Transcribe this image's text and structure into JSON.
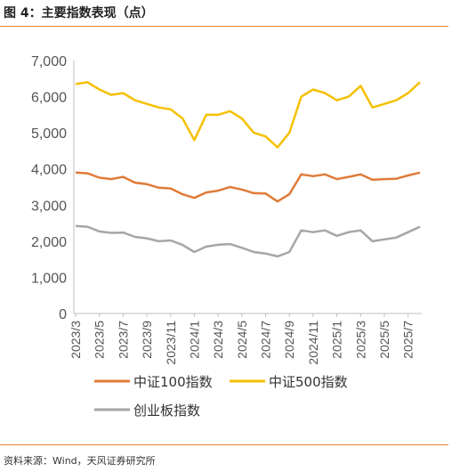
{
  "header": {
    "title": "图 4：主要指数表现（点）"
  },
  "footer": {
    "source": "资料来源：Wind，天风证券研究所"
  },
  "chart_data": {
    "type": "line",
    "title": "图 4：主要指数表现（点）",
    "xlabel": "",
    "ylabel": "",
    "ylim": [
      0,
      7000
    ],
    "y_ticks": [
      "0",
      "1,000",
      "2,000",
      "3,000",
      "4,000",
      "5,000",
      "6,000",
      "7,000"
    ],
    "x_ticks": [
      "2023/3",
      "2023/5",
      "2023/7",
      "2023/9",
      "2023/11",
      "2024/1",
      "2024/3",
      "2024/5",
      "2024/7",
      "2024/9",
      "2024/11",
      "2025/1",
      "2025/3",
      "2025/5",
      "2025/7"
    ],
    "grid": false,
    "legend_position": "bottom",
    "x": [
      "2023/3",
      "2023/4",
      "2023/5",
      "2023/6",
      "2023/7",
      "2023/8",
      "2023/9",
      "2023/10",
      "2023/11",
      "2023/12",
      "2024/1",
      "2024/2",
      "2024/3",
      "2024/4",
      "2024/5",
      "2024/6",
      "2024/7",
      "2024/8",
      "2024/9",
      "2024/10",
      "2024/11",
      "2024/12",
      "2025/1",
      "2025/2",
      "2025/3",
      "2025/4",
      "2025/5",
      "2025/6",
      "2025/7",
      "2025/8"
    ],
    "series": [
      {
        "name": "中证100指数",
        "color": "#e07b39",
        "values": [
          3900,
          3880,
          3760,
          3720,
          3780,
          3620,
          3580,
          3480,
          3460,
          3300,
          3200,
          3350,
          3400,
          3500,
          3430,
          3330,
          3320,
          3100,
          3300,
          3850,
          3800,
          3850,
          3720,
          3780,
          3850,
          3700,
          3720,
          3730,
          3820,
          3900
        ]
      },
      {
        "name": "中证500指数",
        "color": "#f5c000",
        "values": [
          6350,
          6400,
          6200,
          6050,
          6100,
          5900,
          5800,
          5700,
          5650,
          5400,
          4800,
          5500,
          5500,
          5600,
          5400,
          5000,
          4900,
          4600,
          5000,
          6000,
          6200,
          6100,
          5900,
          6000,
          6300,
          5700,
          5800,
          5900,
          6100,
          6400
        ]
      },
      {
        "name": "创业板指数",
        "color": "#a6a6a6",
        "values": [
          2420,
          2400,
          2270,
          2230,
          2240,
          2120,
          2080,
          2000,
          2020,
          1900,
          1700,
          1850,
          1900,
          1920,
          1820,
          1700,
          1660,
          1580,
          1700,
          2300,
          2250,
          2300,
          2150,
          2250,
          2300,
          2000,
          2050,
          2100,
          2250,
          2400
        ]
      }
    ]
  }
}
